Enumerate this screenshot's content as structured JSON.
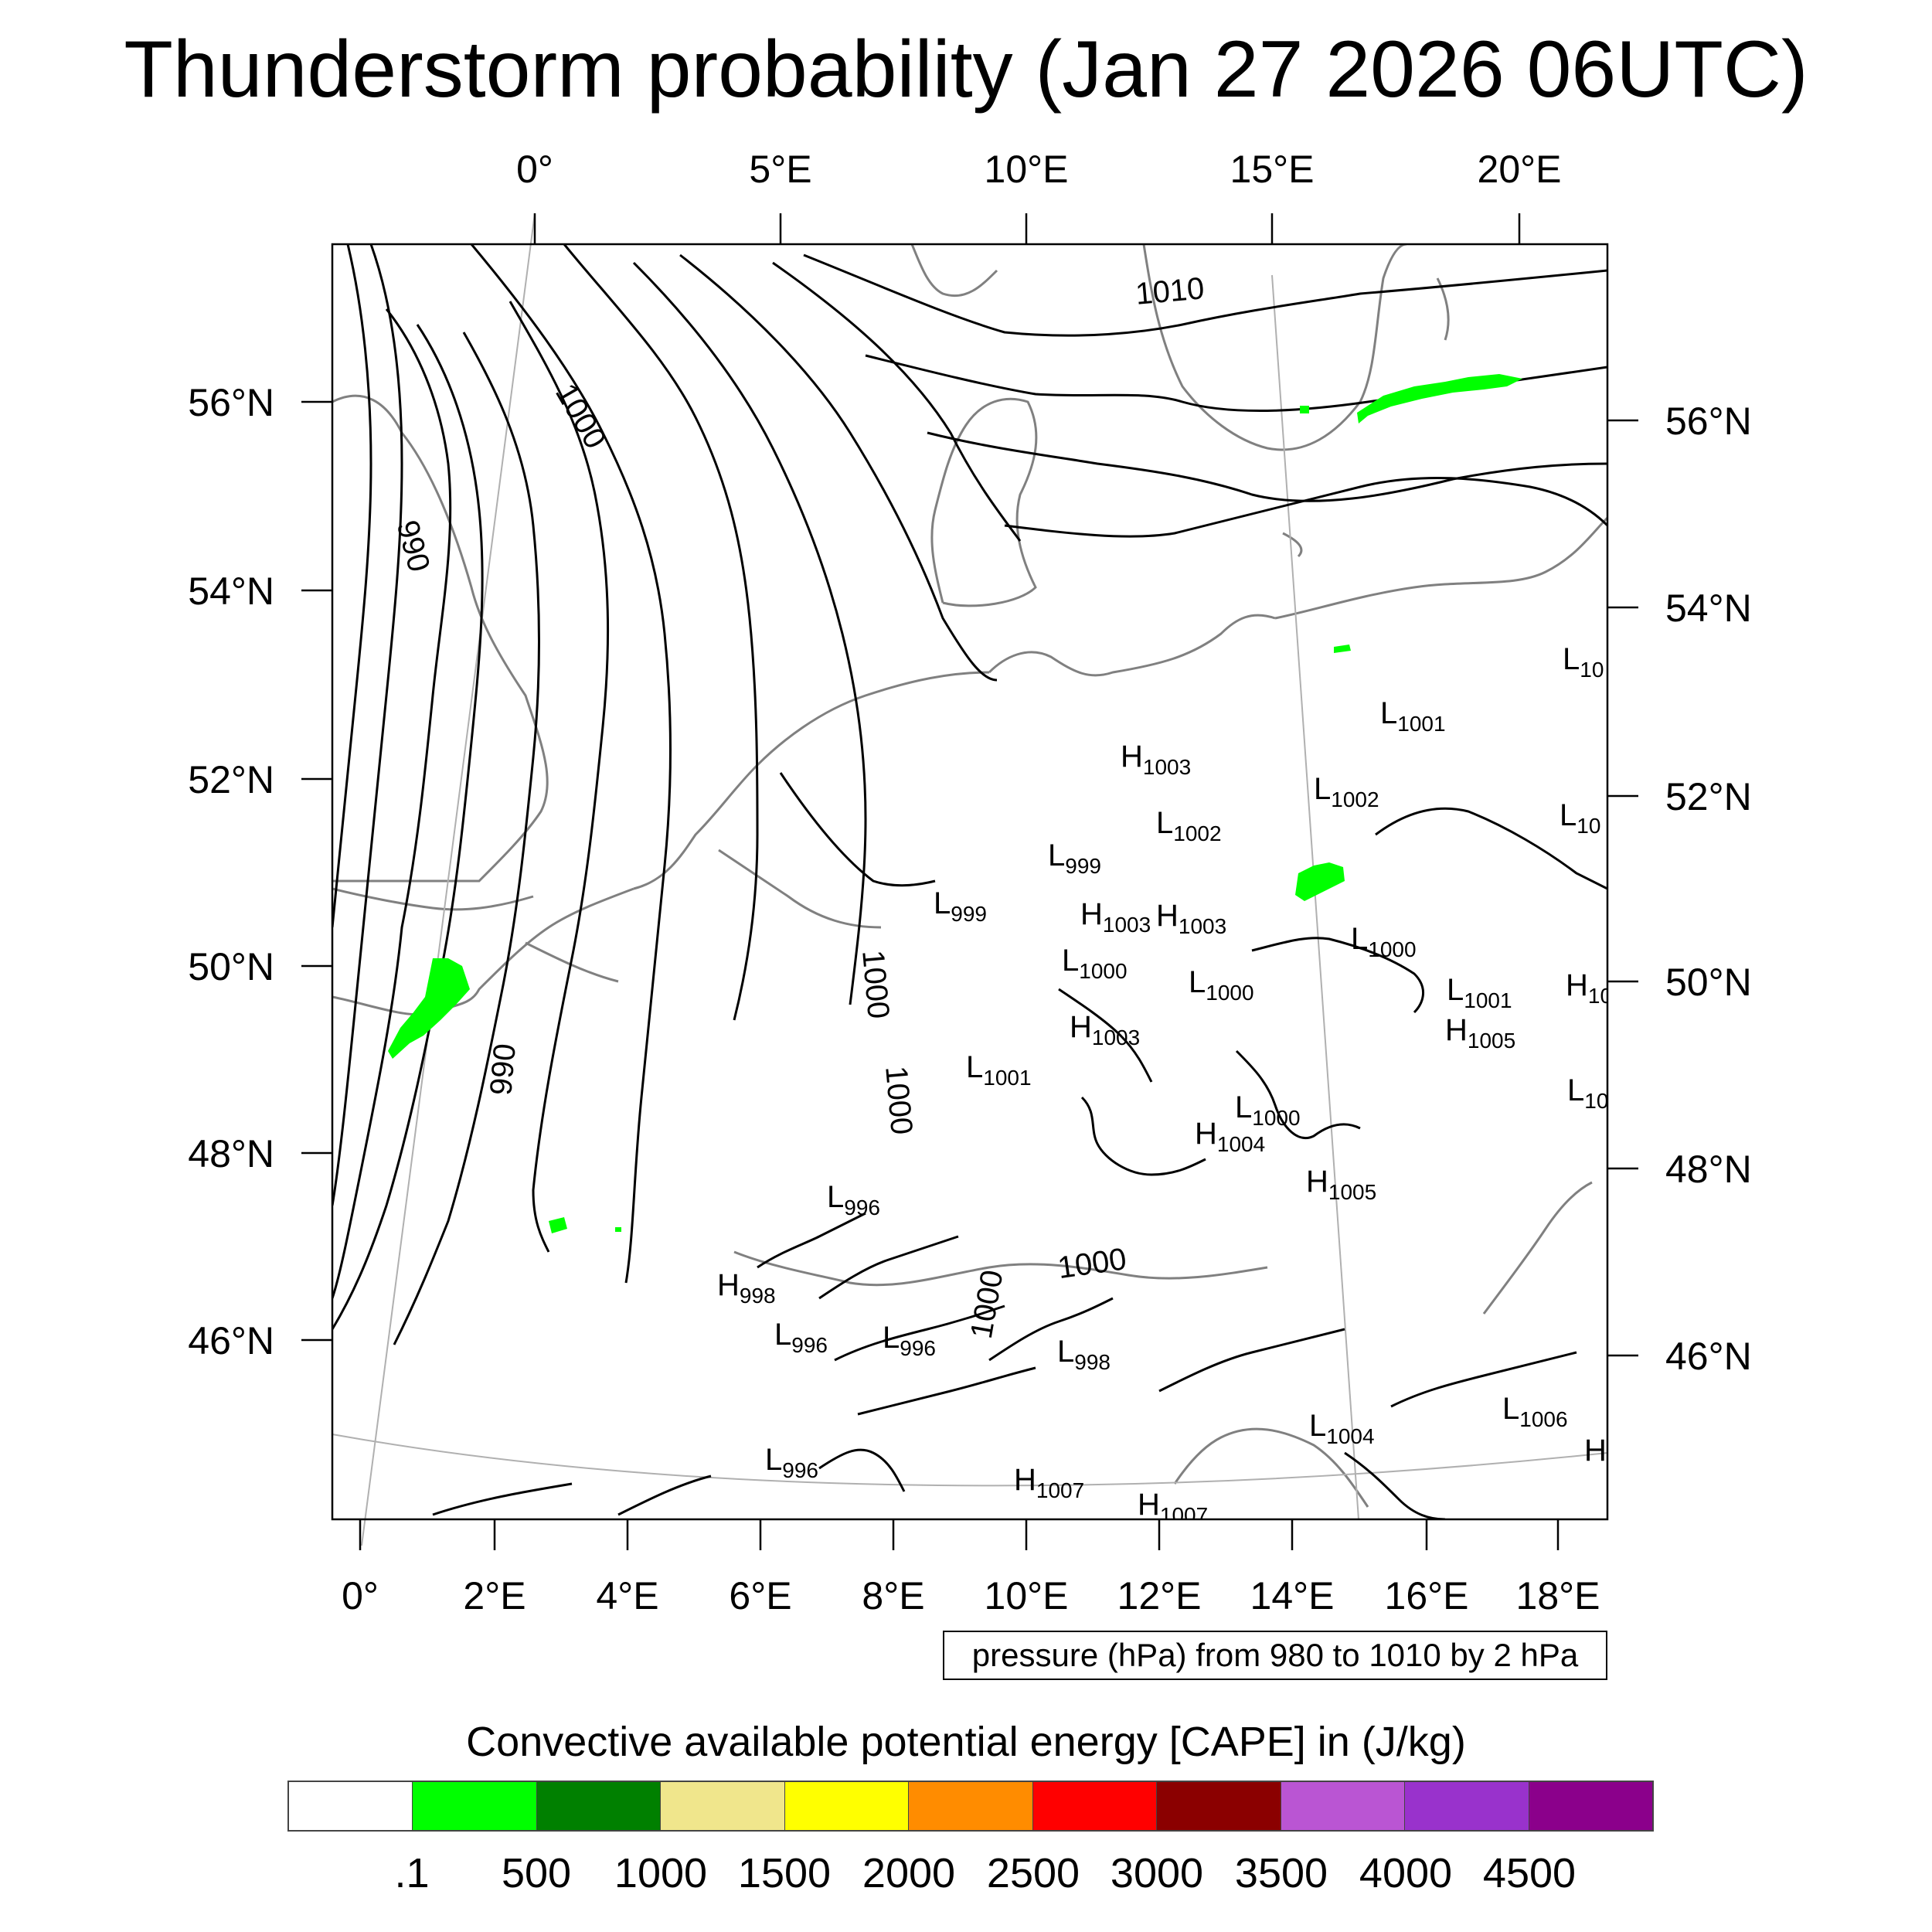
{
  "title": "Thunderstorm probability (Jan 27 2026 06UTC)",
  "top_lon_ticks": [
    "0°",
    "5°E",
    "10°E",
    "15°E",
    "20°E"
  ],
  "bottom_lon_ticks": [
    "0°",
    "2°E",
    "4°E",
    "6°E",
    "8°E",
    "10°E",
    "12°E",
    "14°E",
    "16°E",
    "18°E"
  ],
  "left_lat_ticks": [
    "56°N",
    "54°N",
    "52°N",
    "50°N",
    "48°N",
    "46°N"
  ],
  "right_lat_ticks": [
    "56°N",
    "54°N",
    "52°N",
    "50°N",
    "48°N",
    "46°N"
  ],
  "isobar_labels": [
    "1010",
    "1000",
    "990",
    "990",
    "1000",
    "1000",
    "1000",
    "1000"
  ],
  "pressure_centers": [
    {
      "kind": "H",
      "value": "1003"
    },
    {
      "kind": "L",
      "value": "1001"
    },
    {
      "kind": "L",
      "value": "10"
    },
    {
      "kind": "L",
      "value": "1002"
    },
    {
      "kind": "L",
      "value": "1002"
    },
    {
      "kind": "L",
      "value": "10"
    },
    {
      "kind": "L",
      "value": "999"
    },
    {
      "kind": "L",
      "value": "999"
    },
    {
      "kind": "H",
      "value": "1003"
    },
    {
      "kind": "H",
      "value": "1003"
    },
    {
      "kind": "L",
      "value": "1000"
    },
    {
      "kind": "L",
      "value": "1000"
    },
    {
      "kind": "L",
      "value": "1000"
    },
    {
      "kind": "L",
      "value": "1001"
    },
    {
      "kind": "H",
      "value": "10"
    },
    {
      "kind": "H",
      "value": "1003"
    },
    {
      "kind": "H",
      "value": "1005"
    },
    {
      "kind": "L",
      "value": "1001"
    },
    {
      "kind": "L",
      "value": "10"
    },
    {
      "kind": "L",
      "value": "1000"
    },
    {
      "kind": "H",
      "value": "1004"
    },
    {
      "kind": "H",
      "value": "1005"
    },
    {
      "kind": "L",
      "value": "996"
    },
    {
      "kind": "H",
      "value": "998"
    },
    {
      "kind": "L",
      "value": "996"
    },
    {
      "kind": "L",
      "value": "996"
    },
    {
      "kind": "L",
      "value": "998"
    },
    {
      "kind": "L",
      "value": "1006"
    },
    {
      "kind": "L",
      "value": "1004"
    },
    {
      "kind": "H",
      "value": ""
    },
    {
      "kind": "L",
      "value": "996"
    },
    {
      "kind": "H",
      "value": "1007"
    },
    {
      "kind": "H",
      "value": "1007"
    }
  ],
  "contour_note": "pressure (hPa) from 980 to 1010 by 2 hPa",
  "colorbar": {
    "title": "Convective available potential energy [CAPE] in (J/kg)",
    "colors": [
      "#ffffff",
      "#00ff00",
      "#008000",
      "#f0e68c",
      "#ffff00",
      "#ff8c00",
      "#ff0000",
      "#8b0000",
      "#ba55d3",
      "#9932cc",
      "#8b008b"
    ],
    "labels": [
      ".1",
      "500",
      "1000",
      "1500",
      "2000",
      "2500",
      "3000",
      "3500",
      "4000",
      "4500"
    ]
  },
  "colors": {
    "isobar": "#000000",
    "coastline": "#808080",
    "cape_low": "#00ff00"
  }
}
